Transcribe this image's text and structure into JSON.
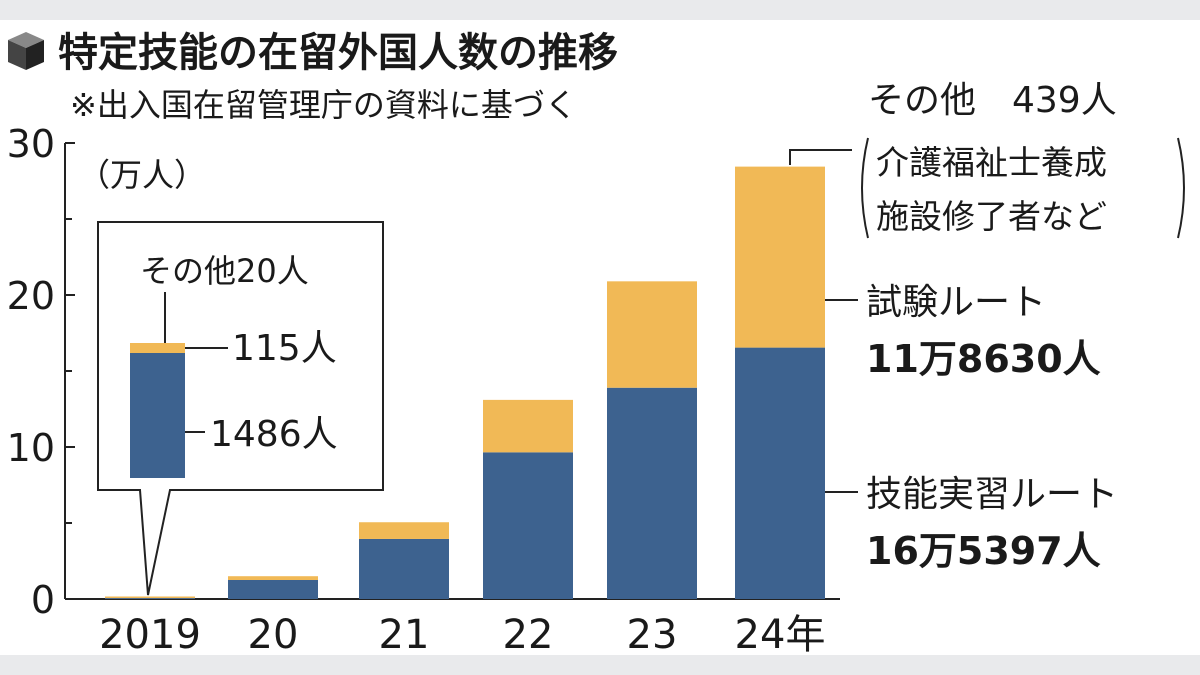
{
  "chart_data": {
    "type": "bar",
    "stacked": true,
    "title": "特定技能の在留外国人数の推移",
    "subtitle": "※出入国在留管理庁の資料に基づく",
    "ylabel": "（万人）",
    "ylim": [
      0,
      30
    ],
    "yticks": [
      "0",
      "10",
      "20",
      "30"
    ],
    "categories": [
      "2019",
      "20",
      "21",
      "22",
      "23",
      "24年"
    ],
    "series": [
      {
        "name": "技能実習ルート",
        "color": "#3d628f",
        "values": [
          0.1486,
          1.25,
          3.95,
          9.65,
          13.9,
          16.5397
        ]
      },
      {
        "name": "試験ルート",
        "color": "#f1b956",
        "values": [
          0.0115,
          0.25,
          1.1,
          3.45,
          7.0,
          11.863
        ]
      },
      {
        "name": "その他",
        "color": "#f1b956",
        "values": [
          0.002,
          0,
          0,
          0,
          0,
          0.0439
        ]
      }
    ],
    "inset": {
      "other": "その他20人",
      "test": "115人",
      "skill": "1486人"
    },
    "annotations": {
      "other_label": "その他　439人",
      "other_note_1": "介護福祉士養成",
      "other_note_2": "施設修了者など",
      "test_label": "試験ルート",
      "test_value": "11万8630人",
      "skill_label": "技能実習ルート",
      "skill_value": "16万5397人"
    }
  }
}
